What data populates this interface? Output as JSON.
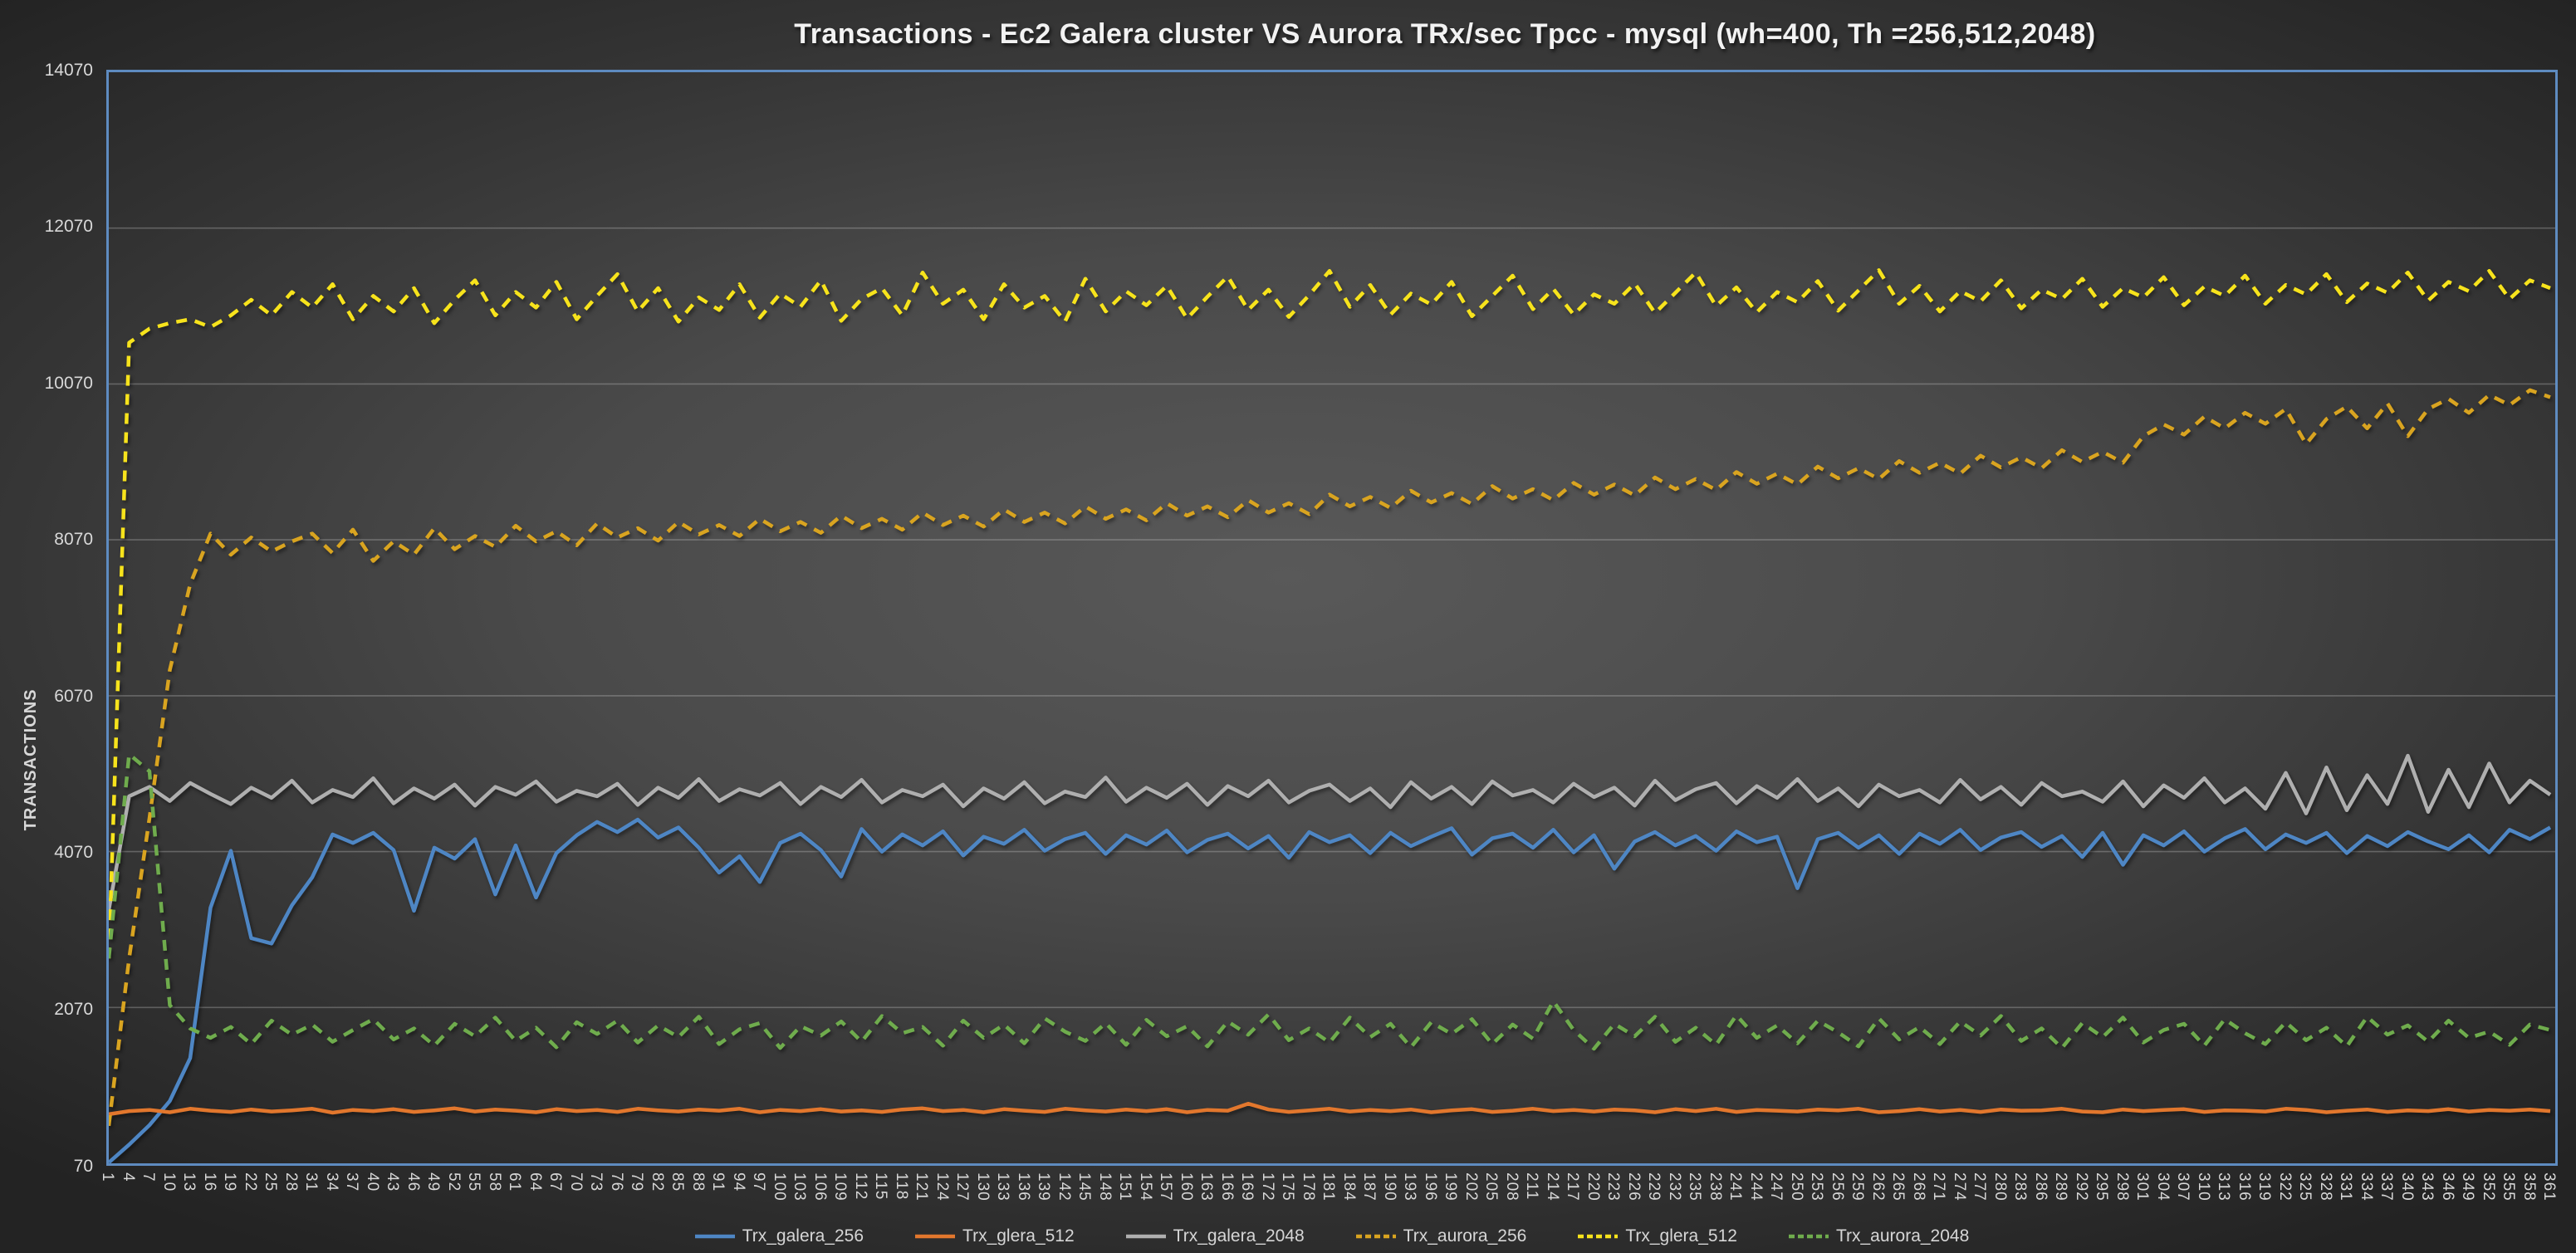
{
  "title": "Transactions - Ec2 Galera cluster VS Aurora TRx/sec Tpcc - mysql (wh=400, Th =256,512,2048)",
  "colors": {
    "plot_border": "#5e8bc0",
    "gridline": "#9a9a9a",
    "axis_text": "#d8d8d8",
    "title_text": "#f2f2f2",
    "legend_text": "#d6d6d6"
  },
  "chart_data": {
    "type": "line",
    "title": "Transactions - Ec2 Galera cluster VS Aurora TRx/sec Tpcc - mysql (wh=400, Th =256,512,2048)",
    "xlabel": "",
    "ylabel": "TRANSACTIONS",
    "ylim": [
      70,
      14070
    ],
    "y_ticks": [
      14070,
      12070,
      10070,
      8070,
      6070,
      4070,
      2070,
      70
    ],
    "grid": true,
    "legend_position": "bottom",
    "x": [
      1,
      4,
      7,
      10,
      13,
      16,
      19,
      22,
      25,
      28,
      31,
      34,
      37,
      40,
      43,
      46,
      49,
      52,
      55,
      58,
      61,
      64,
      67,
      70,
      73,
      76,
      79,
      82,
      85,
      88,
      91,
      94,
      97,
      100,
      103,
      106,
      109,
      112,
      115,
      118,
      121,
      124,
      127,
      130,
      133,
      136,
      139,
      142,
      145,
      148,
      151,
      154,
      157,
      160,
      163,
      166,
      169,
      172,
      175,
      178,
      181,
      184,
      187,
      190,
      193,
      196,
      199,
      202,
      205,
      208,
      211,
      214,
      217,
      220,
      223,
      226,
      229,
      232,
      235,
      238,
      241,
      244,
      247,
      250,
      253,
      256,
      259,
      262,
      265,
      268,
      271,
      274,
      277,
      280,
      283,
      286,
      289,
      292,
      295,
      298,
      301,
      304,
      307,
      310,
      313,
      316,
      319,
      322,
      325,
      328,
      331,
      334,
      337,
      340,
      343,
      346,
      349,
      352,
      355,
      358,
      361
    ],
    "series": [
      {
        "name": "Trx_galera_256",
        "color": "#4e86c4",
        "dash": false,
        "values": [
          80,
          310,
          560,
          870,
          1420,
          3350,
          4080,
          2960,
          2890,
          3380,
          3740,
          4290,
          4180,
          4310,
          4090,
          3310,
          4120,
          3980,
          4230,
          3520,
          4150,
          3480,
          4050,
          4280,
          4450,
          4320,
          4480,
          4250,
          4380,
          4120,
          3800,
          4010,
          3680,
          4180,
          4300,
          4090,
          3750,
          4360,
          4070,
          4290,
          4150,
          4330,
          4020,
          4260,
          4170,
          4350,
          4080,
          4230,
          4310,
          4040,
          4280,
          4160,
          4340,
          4060,
          4220,
          4300,
          4110,
          4270,
          3990,
          4320,
          4190,
          4280,
          4050,
          4310,
          4140,
          4260,
          4370,
          4030,
          4240,
          4300,
          4120,
          4350,
          4060,
          4280,
          3850,
          4200,
          4320,
          4150,
          4270,
          4080,
          4330,
          4190,
          4260,
          3600,
          4230,
          4310,
          4120,
          4280,
          4040,
          4300,
          4170,
          4350,
          4090,
          4250,
          4320,
          4130,
          4270,
          4000,
          4310,
          3900,
          4280,
          4150,
          4330,
          4070,
          4240,
          4360,
          4100,
          4290,
          4180,
          4310,
          4050,
          4270,
          4140,
          4320,
          4200,
          4100,
          4280,
          4060,
          4350,
          4230,
          4380
        ]
      },
      {
        "name": "Trx_glera_512",
        "color": "#e2772d",
        "dash": false,
        "values": [
          700,
          740,
          755,
          725,
          770,
          745,
          730,
          760,
          735,
          750,
          770,
          720,
          755,
          740,
          765,
          730,
          750,
          775,
          735,
          760,
          745,
          725,
          765,
          740,
          755,
          730,
          770,
          750,
          735,
          760,
          745,
          770,
          725,
          755,
          740,
          765,
          735,
          750,
          730,
          760,
          775,
          740,
          755,
          725,
          765,
          745,
          730,
          770,
          750,
          735,
          760,
          740,
          765,
          725,
          755,
          745,
          835,
          760,
          730,
          750,
          770,
          735,
          755,
          740,
          760,
          725,
          750,
          765,
          730,
          745,
          770,
          740,
          755,
          735,
          760,
          750,
          725,
          765,
          740,
          770,
          730,
          755,
          745,
          735,
          760,
          750,
          770,
          725,
          740,
          765,
          735,
          755,
          730,
          760,
          745,
          750,
          770,
          735,
          725,
          760,
          740,
          755,
          765,
          730,
          750,
          745,
          735,
          770,
          755,
          725,
          745,
          760,
          730,
          750,
          740,
          765,
          735,
          755,
          745,
          760,
          740
        ]
      },
      {
        "name": "Trx_galera_2048",
        "color": "#afafaf",
        "dash": false,
        "values": [
          3320,
          4780,
          4900,
          4720,
          4950,
          4810,
          4680,
          4890,
          4760,
          4980,
          4700,
          4860,
          4770,
          5010,
          4690,
          4880,
          4750,
          4930,
          4660,
          4900,
          4800,
          4970,
          4710,
          4850,
          4780,
          4940,
          4670,
          4890,
          4760,
          5000,
          4720,
          4870,
          4790,
          4950,
          4680,
          4900,
          4770,
          4990,
          4700,
          4860,
          4780,
          4930,
          4650,
          4880,
          4750,
          4960,
          4690,
          4840,
          4770,
          5020,
          4710,
          4890,
          4760,
          4940,
          4670,
          4910,
          4780,
          4980,
          4700,
          4850,
          4930,
          4720,
          4880,
          4640,
          4960,
          4750,
          4900,
          4680,
          4970,
          4790,
          4860,
          4700,
          4940,
          4770,
          4890,
          4660,
          4980,
          4730,
          4870,
          4950,
          4690,
          4910,
          4760,
          5000,
          4720,
          4880,
          4650,
          4930,
          4780,
          4860,
          4700,
          4990,
          4740,
          4900,
          4670,
          4950,
          4780,
          4840,
          4710,
          4970,
          4650,
          4920,
          4760,
          5010,
          4700,
          4880,
          4620,
          5080,
          4560,
          5150,
          4600,
          5050,
          4680,
          5300,
          4580,
          5120,
          4640,
          5200,
          4700,
          4980,
          4800
        ]
      },
      {
        "name": "Trx_aurora_256",
        "color": "#d9a420",
        "dash": true,
        "values": [
          550,
          2700,
          4500,
          6400,
          7500,
          8150,
          7880,
          8100,
          7920,
          8050,
          8150,
          7900,
          8200,
          7800,
          8050,
          7880,
          8220,
          7950,
          8120,
          7980,
          8250,
          8050,
          8180,
          8000,
          8280,
          8100,
          8220,
          8060,
          8300,
          8140,
          8260,
          8120,
          8340,
          8180,
          8300,
          8160,
          8380,
          8220,
          8340,
          8200,
          8420,
          8260,
          8380,
          8240,
          8460,
          8300,
          8420,
          8280,
          8500,
          8340,
          8460,
          8320,
          8540,
          8380,
          8500,
          8360,
          8580,
          8420,
          8540,
          8400,
          8650,
          8500,
          8620,
          8480,
          8700,
          8550,
          8670,
          8530,
          8760,
          8600,
          8720,
          8580,
          8800,
          8650,
          8780,
          8640,
          8870,
          8720,
          8850,
          8710,
          8940,
          8790,
          8920,
          8780,
          9010,
          8860,
          8990,
          8850,
          9080,
          8930,
          9060,
          8920,
          9150,
          9000,
          9130,
          8990,
          9220,
          9070,
          9200,
          9060,
          9400,
          9550,
          9420,
          9650,
          9500,
          9700,
          9560,
          9750,
          9300,
          9620,
          9780,
          9500,
          9820,
          9400,
          9750,
          9880,
          9700,
          9930,
          9800,
          9990,
          9900
        ]
      },
      {
        "name": "Trx_glera_512",
        "color": "#f7e31c",
        "dash": true,
        "values": [
          2700,
          10600,
          10780,
          10850,
          10900,
          10800,
          10950,
          11150,
          10950,
          11250,
          11050,
          11350,
          10900,
          11200,
          11000,
          11300,
          10850,
          11150,
          11400,
          10950,
          11250,
          11050,
          11380,
          10900,
          11200,
          11480,
          11000,
          11300,
          10870,
          11180,
          11020,
          11350,
          10920,
          11230,
          11060,
          11400,
          10880,
          11160,
          11300,
          10950,
          11500,
          11100,
          11280,
          10900,
          11350,
          11050,
          11200,
          10870,
          11420,
          11000,
          11260,
          11080,
          11330,
          10910,
          11190,
          11450,
          11020,
          11280,
          10930,
          11210,
          11520,
          11060,
          11340,
          10960,
          11230,
          11090,
          11380,
          10940,
          11200,
          11460,
          11030,
          11290,
          10960,
          11220,
          11100,
          11360,
          10980,
          11240,
          11500,
          11070,
          11310,
          10990,
          11250,
          11120,
          11390,
          11010,
          11270,
          11530,
          11100,
          11330,
          11000,
          11260,
          11130,
          11400,
          11040,
          11280,
          11160,
          11420,
          11060,
          11300,
          11180,
          11440,
          11080,
          11320,
          11200,
          11460,
          11100,
          11340,
          11220,
          11480,
          11120,
          11360,
          11240,
          11500,
          11140,
          11380,
          11260,
          11520,
          11160,
          11400,
          11300
        ]
      },
      {
        "name": "Trx_aurora_2048",
        "color": "#6fac4d",
        "dash": true,
        "values": [
          2700,
          5320,
          5100,
          2100,
          1800,
          1680,
          1820,
          1600,
          1900,
          1720,
          1850,
          1630,
          1780,
          1920,
          1660,
          1800,
          1580,
          1860,
          1700,
          1940,
          1640,
          1810,
          1560,
          1880,
          1730,
          1900,
          1620,
          1840,
          1690,
          1950,
          1600,
          1790,
          1870,
          1550,
          1830,
          1710,
          1890,
          1630,
          1960,
          1740,
          1820,
          1580,
          1900,
          1680,
          1850,
          1610,
          1930,
          1760,
          1640,
          1870,
          1590,
          1910,
          1700,
          1830,
          1570,
          1890,
          1720,
          1980,
          1650,
          1800,
          1620,
          1940,
          1690,
          1860,
          1560,
          1880,
          1730,
          1920,
          1600,
          1850,
          1670,
          2150,
          1780,
          1540,
          1860,
          1700,
          1950,
          1630,
          1810,
          1590,
          1970,
          1680,
          1840,
          1610,
          1900,
          1750,
          1570,
          1930,
          1660,
          1820,
          1600,
          1890,
          1710,
          1960,
          1640,
          1800,
          1550,
          1870,
          1690,
          1940,
          1620,
          1780,
          1860,
          1580,
          1920,
          1740,
          1600,
          1880,
          1650,
          1810,
          1570,
          1950,
          1720,
          1840,
          1630,
          1900,
          1680,
          1760,
          1590,
          1850,
          1780
        ]
      }
    ]
  }
}
